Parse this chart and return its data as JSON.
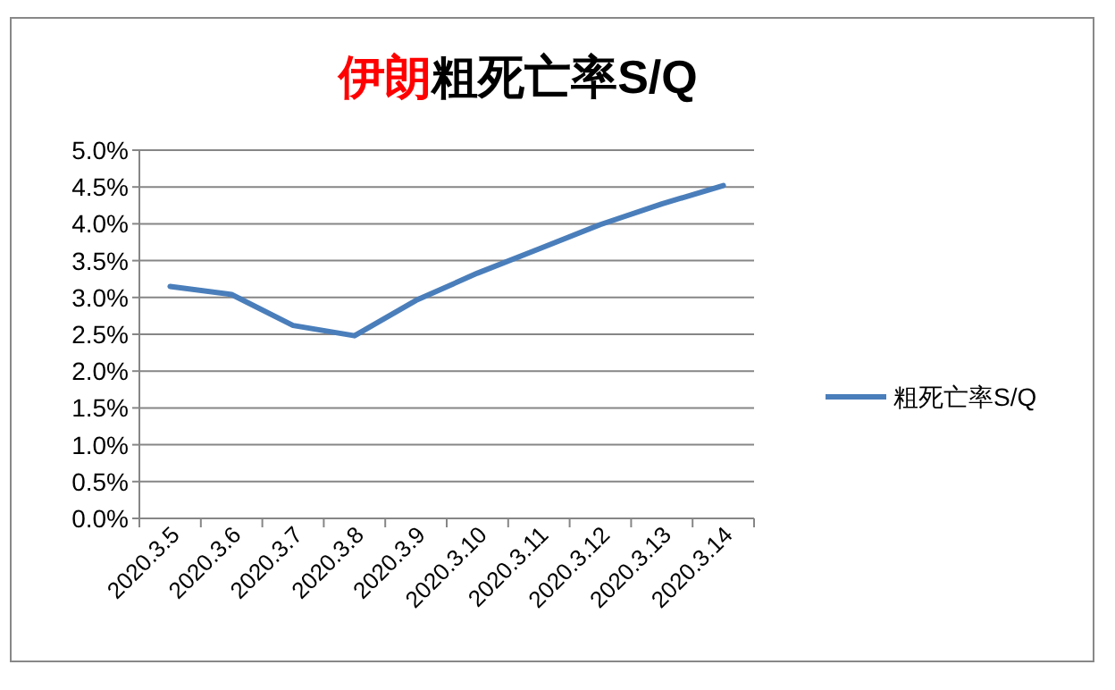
{
  "chart_data": {
    "type": "line",
    "title": "伊朗粗死亡率S/Q",
    "categories": [
      "2020.3.5",
      "2020.3.6",
      "2020.3.7",
      "2020.3.8",
      "2020.3.9",
      "2020.3.10",
      "2020.3.11",
      "2020.3.12",
      "2020.3.13",
      "2020.3.14"
    ],
    "series": [
      {
        "name": "粗死亡率S/Q",
        "color": "#4a7ebb",
        "values": [
          3.15,
          3.04,
          2.62,
          2.48,
          2.96,
          3.33,
          3.66,
          3.99,
          4.27,
          4.52
        ]
      }
    ],
    "ylim": [
      0,
      5
    ],
    "yticks": [
      {
        "value": 0,
        "label": "0.0%"
      },
      {
        "value": 0.5,
        "label": "0.5%"
      },
      {
        "value": 1,
        "label": "1.0%"
      },
      {
        "value": 1.5,
        "label": "1.5%"
      },
      {
        "value": 2,
        "label": "2.0%"
      },
      {
        "value": 2.5,
        "label": "2.5%"
      },
      {
        "value": 3,
        "label": "3.0%"
      },
      {
        "value": 3.5,
        "label": "3.5%"
      },
      {
        "value": 4,
        "label": "4.0%"
      },
      {
        "value": 4.5,
        "label": "4.5%"
      },
      {
        "value": 5,
        "label": "5.0%"
      }
    ],
    "grid": "y",
    "legend": "right",
    "marker": "none",
    "line_style": "solid"
  }
}
